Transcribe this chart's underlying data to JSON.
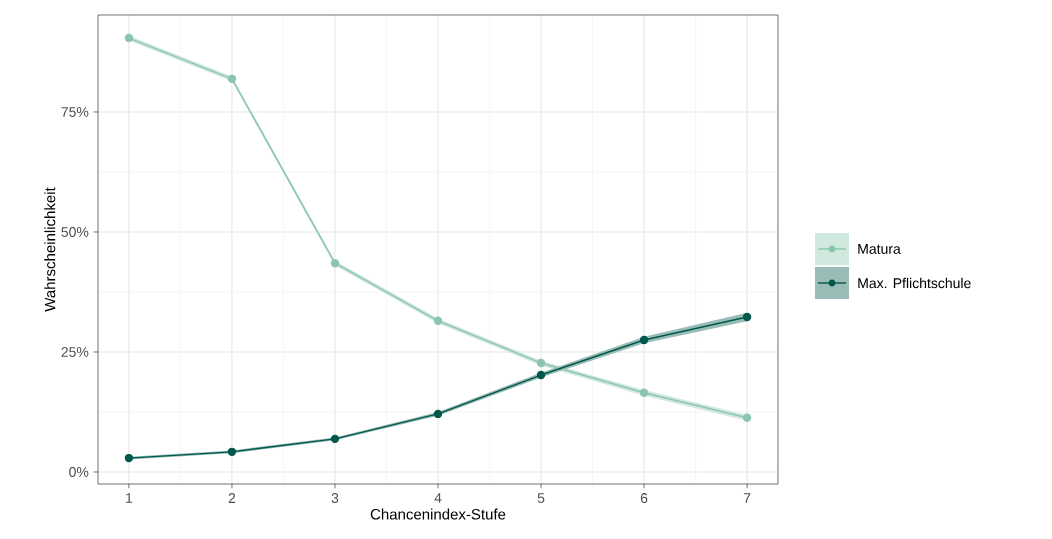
{
  "chart_data": {
    "type": "line",
    "xlabel": "Chancenindex-Stufe",
    "ylabel": "Wahrscheinlichkeit",
    "x": [
      1,
      2,
      3,
      4,
      5,
      6,
      7
    ],
    "series": [
      {
        "name": "Matura",
        "color": "#8cc5ad",
        "values": [
          90.4,
          81.9,
          43.5,
          31.5,
          22.7,
          16.5,
          11.3
        ],
        "lower": [
          89.9,
          81.4,
          43.0,
          31.0,
          22.2,
          15.9,
          10.7
        ],
        "upper": [
          90.9,
          82.4,
          44.0,
          32.0,
          23.2,
          17.1,
          11.9
        ]
      },
      {
        "name": "Max. Pflichtschule",
        "color": "#00574b",
        "values": [
          2.9,
          4.2,
          6.9,
          12.1,
          20.2,
          27.5,
          32.3
        ],
        "lower": [
          2.6,
          3.9,
          6.6,
          11.7,
          19.7,
          26.8,
          31.4
        ],
        "upper": [
          3.2,
          4.5,
          7.2,
          12.5,
          20.7,
          28.2,
          33.2
        ]
      }
    ],
    "xlim": [
      0.7,
      7.3
    ],
    "ylim": [
      -2.5,
      95.2
    ],
    "xticks": [
      1,
      2,
      3,
      4,
      5,
      6,
      7
    ],
    "yticks": [
      {
        "value": 0,
        "label": "0%"
      },
      {
        "value": 25,
        "label": "25%"
      },
      {
        "value": 50,
        "label": "50%"
      },
      {
        "value": 75,
        "label": "75%"
      }
    ],
    "grid": true,
    "legend": "right",
    "marker": "circle",
    "line_style": "solid"
  }
}
